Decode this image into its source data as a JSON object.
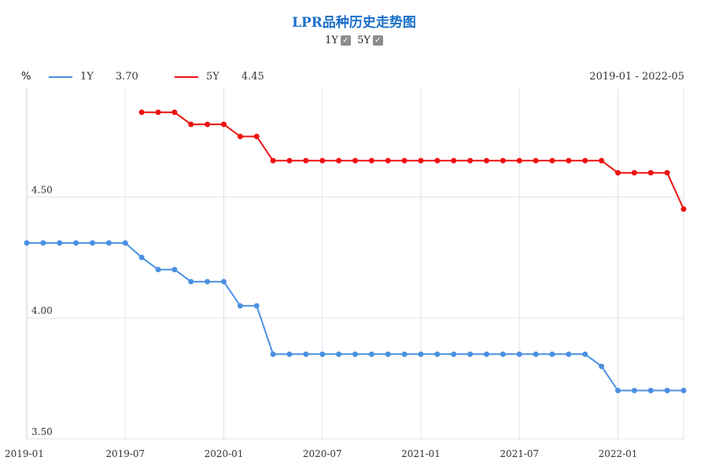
{
  "header": {
    "title": "LPR品种历史走势图",
    "toggles": [
      {
        "label": "1Y",
        "check": "✓"
      },
      {
        "label": "5Y",
        "check": "✓"
      }
    ],
    "unit": "%",
    "range": "2019-01 - 2022-05"
  },
  "legend": [
    {
      "name": "1Y",
      "value": "3.70",
      "color": "#4a90e2"
    },
    {
      "name": "5Y",
      "value": "4.45",
      "color": "#ee1111"
    }
  ],
  "chart_data": {
    "type": "line",
    "title": "LPR品种历史走势图",
    "ylabel": "%",
    "ylim": [
      3.5,
      4.95
    ],
    "yticks": [
      "3.50",
      "4.00",
      "4.50"
    ],
    "ytick_values": [
      3.5,
      4.0,
      4.5
    ],
    "xticks": [
      "2019-01",
      "2019-07",
      "2020-01",
      "2020-07",
      "2021-01",
      "2021-07",
      "2022-01"
    ],
    "xtick_months": [
      "2019-01",
      "2019-07",
      "2020-01",
      "2020-07",
      "2021-01",
      "2021-07",
      "2022-01"
    ],
    "grid": true,
    "series": [
      {
        "name": "1Y",
        "color": "#4a90e2",
        "x": [
          "2019-01",
          "2019-02",
          "2019-03",
          "2019-04",
          "2019-05",
          "2019-06",
          "2019-07",
          "2019-08",
          "2019-09",
          "2019-10",
          "2019-11",
          "2019-12",
          "2020-01",
          "2020-02",
          "2020-03",
          "2020-04",
          "2020-05",
          "2020-06",
          "2020-07",
          "2020-08",
          "2020-09",
          "2020-10",
          "2020-11",
          "2020-12",
          "2021-01",
          "2021-02",
          "2021-03",
          "2021-04",
          "2021-05",
          "2021-06",
          "2021-07",
          "2021-08",
          "2021-09",
          "2021-10",
          "2021-11",
          "2021-12",
          "2022-01",
          "2022-02",
          "2022-03",
          "2022-04",
          "2022-05"
        ],
        "values": [
          4.31,
          4.31,
          4.31,
          4.31,
          4.31,
          4.31,
          4.31,
          4.25,
          4.2,
          4.2,
          4.15,
          4.15,
          4.15,
          4.05,
          4.05,
          3.85,
          3.85,
          3.85,
          3.85,
          3.85,
          3.85,
          3.85,
          3.85,
          3.85,
          3.85,
          3.85,
          3.85,
          3.85,
          3.85,
          3.85,
          3.85,
          3.85,
          3.85,
          3.85,
          3.85,
          3.8,
          3.7,
          3.7,
          3.7,
          3.7,
          3.7
        ]
      },
      {
        "name": "5Y",
        "color": "#ee1111",
        "x": [
          "2019-08",
          "2019-09",
          "2019-10",
          "2019-11",
          "2019-12",
          "2020-01",
          "2020-02",
          "2020-03",
          "2020-04",
          "2020-05",
          "2020-06",
          "2020-07",
          "2020-08",
          "2020-09",
          "2020-10",
          "2020-11",
          "2020-12",
          "2021-01",
          "2021-02",
          "2021-03",
          "2021-04",
          "2021-05",
          "2021-06",
          "2021-07",
          "2021-08",
          "2021-09",
          "2021-10",
          "2021-11",
          "2021-12",
          "2022-01",
          "2022-02",
          "2022-03",
          "2022-04",
          "2022-05"
        ],
        "values": [
          4.85,
          4.85,
          4.85,
          4.8,
          4.8,
          4.8,
          4.75,
          4.75,
          4.65,
          4.65,
          4.65,
          4.65,
          4.65,
          4.65,
          4.65,
          4.65,
          4.65,
          4.65,
          4.65,
          4.65,
          4.65,
          4.65,
          4.65,
          4.65,
          4.65,
          4.65,
          4.65,
          4.65,
          4.65,
          4.6,
          4.6,
          4.6,
          4.6,
          4.45
        ]
      }
    ]
  }
}
